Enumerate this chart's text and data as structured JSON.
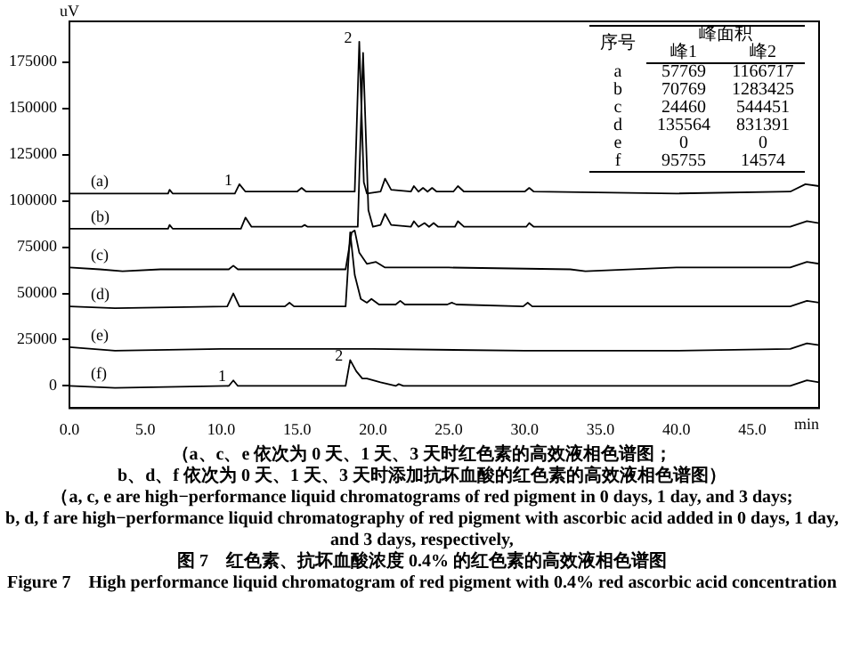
{
  "chart_data": {
    "type": "line",
    "title": "图 7　红色素、抗坏血酸浓度 0.4% 的红色素的高效液相色谱图",
    "subtitle": "Figure 7　High performance liquid chromatogram of red pigment with 0.4% red ascorbic acid concentration",
    "xlabel": "min",
    "ylabel": "uV",
    "xlim": [
      0,
      49.4
    ],
    "ylim": [
      -12000,
      197000
    ],
    "xticks": [
      {
        "value": 0,
        "label": "0.0"
      },
      {
        "value": 5,
        "label": "5.0"
      },
      {
        "value": 10,
        "label": "10.0"
      },
      {
        "value": 15,
        "label": "15.0"
      },
      {
        "value": 20,
        "label": "20.0"
      },
      {
        "value": 25,
        "label": "25.0"
      },
      {
        "value": 30,
        "label": "30.0"
      },
      {
        "value": 35,
        "label": "35.0"
      },
      {
        "value": 40,
        "label": "40.0"
      },
      {
        "value": 45,
        "label": "45.0"
      }
    ],
    "yticks": [
      0,
      25000,
      50000,
      75000,
      100000,
      125000,
      150000,
      175000
    ],
    "grid": false,
    "legend": false,
    "marker": "none",
    "line_style": "solid",
    "series": [
      {
        "name": "(a)",
        "color": "#000000",
        "x": [
          0,
          6.5,
          6.6,
          6.8,
          10.9,
          11.2,
          11.6,
          15,
          15.3,
          15.6,
          18.8,
          19.1,
          19.4,
          19.6,
          20.5,
          20.8,
          21.2,
          22.5,
          22.7,
          23,
          23.3,
          23.6,
          23.9,
          24.2,
          25.3,
          25.6,
          26,
          30,
          30.3,
          30.6,
          40,
          47.5,
          48.5,
          49.4
        ],
        "values": [
          104000,
          104000,
          106000,
          104000,
          104000,
          109000,
          105000,
          105000,
          107000,
          105000,
          105000,
          186000,
          110000,
          104000,
          105000,
          112000,
          106000,
          105000,
          108000,
          105000,
          107000,
          105000,
          107000,
          105000,
          105000,
          108000,
          105000,
          105000,
          107000,
          105000,
          104000,
          105000,
          109000,
          108000
        ]
      },
      {
        "name": "(b)",
        "color": "#000000",
        "x": [
          0,
          6.5,
          6.6,
          6.8,
          11.3,
          11.6,
          12,
          15.3,
          15.5,
          15.7,
          19.0,
          19.35,
          19.7,
          20.0,
          20.5,
          20.8,
          21.2,
          22.5,
          22.7,
          23,
          23.4,
          23.7,
          24,
          24.3,
          25.4,
          25.6,
          26,
          30.1,
          30.3,
          30.6,
          40,
          47.5,
          48.6,
          49.4
        ],
        "values": [
          85000,
          85000,
          87000,
          85000,
          85000,
          91000,
          86000,
          86000,
          87000,
          86000,
          86000,
          180000,
          95000,
          86000,
          87000,
          93000,
          87000,
          86000,
          89000,
          86000,
          88000,
          86000,
          88000,
          86000,
          86000,
          89000,
          86000,
          86000,
          88000,
          86000,
          86000,
          86000,
          89000,
          88000
        ]
      },
      {
        "name": "(c)",
        "color": "#000000",
        "x": [
          0,
          2,
          3.5,
          6,
          10.5,
          10.8,
          11.1,
          18.2,
          18.6,
          18.8,
          19.1,
          19.6,
          20.2,
          20.8,
          25,
          33,
          34,
          40,
          47.5,
          48.6,
          49.4
        ],
        "values": [
          64000,
          63000,
          62000,
          63000,
          63000,
          65000,
          63000,
          63000,
          83000,
          84000,
          72000,
          66000,
          67000,
          64000,
          64000,
          63000,
          62000,
          64000,
          64000,
          67000,
          66000
        ]
      },
      {
        "name": "(d)",
        "color": "#000000",
        "x": [
          0,
          3,
          10.4,
          10.8,
          11.2,
          14.2,
          14.5,
          14.8,
          18.2,
          18.5,
          18.8,
          19.2,
          19.6,
          19.9,
          20.4,
          21.5,
          21.8,
          22.1,
          24.9,
          25.2,
          25.5,
          29.9,
          30.2,
          30.5,
          40,
          47.5,
          48.6,
          49.4
        ],
        "values": [
          43000,
          42000,
          43000,
          50000,
          43000,
          43000,
          45000,
          43000,
          43000,
          83000,
          60000,
          47000,
          45000,
          47000,
          44000,
          44000,
          46000,
          44000,
          44000,
          45000,
          44000,
          43000,
          45000,
          43000,
          43000,
          43000,
          46000,
          45000
        ]
      },
      {
        "name": "(e)",
        "color": "#000000",
        "x": [
          0,
          3,
          10,
          20,
          30,
          40,
          47.5,
          48.6,
          49.4
        ],
        "values": [
          21000,
          19000,
          20000,
          20000,
          19000,
          19000,
          20000,
          23000,
          22000
        ]
      },
      {
        "name": "(f)",
        "color": "#000000",
        "x": [
          0,
          3,
          10.5,
          10.8,
          11.1,
          18.2,
          18.5,
          18.9,
          19.3,
          19.6,
          20.5,
          21.5,
          21.7,
          22,
          30,
          40,
          47.5,
          48.6,
          49.4
        ],
        "values": [
          0,
          -1000,
          0,
          3000,
          0,
          0,
          14000,
          8000,
          4000,
          4000,
          2000,
          0,
          1000,
          0,
          0,
          0,
          0,
          3000,
          2000
        ]
      }
    ],
    "annotations": [
      {
        "text": "1",
        "x": 11.2,
        "y": 109000
      },
      {
        "text": "2",
        "x": 19.1,
        "y": 186000
      },
      {
        "text": "1",
        "x": 10.8,
        "y": 3000
      },
      {
        "text": "2",
        "x": 18.5,
        "y": 14000
      },
      "序号",
      "峰面积",
      "峰1",
      "峰2",
      "a",
      "57769",
      "1166717",
      "b",
      "70769",
      "1283425",
      "c",
      "24460",
      "544451",
      "d",
      "135564",
      "831391",
      "e",
      "0",
      "0",
      "f",
      "95755",
      "14574",
      "（a、c、e 依次为 0 天、1 天、3 天时红色素的高效液相色谱图；",
      "b、d、f 依次为 0 天、1 天、3 天时添加抗坏血酸的红色素的高效液相色谱图）",
      "（a, c, e are high−performance liquid chromatograms of red pigment in 0 days, 1 day, and 3 days;",
      "b, d, f are high−performance liquid chromatography of red pigment with ascorbic acid added in 0 days, 1 day, and 3 days, respectively,"
    ]
  }
}
